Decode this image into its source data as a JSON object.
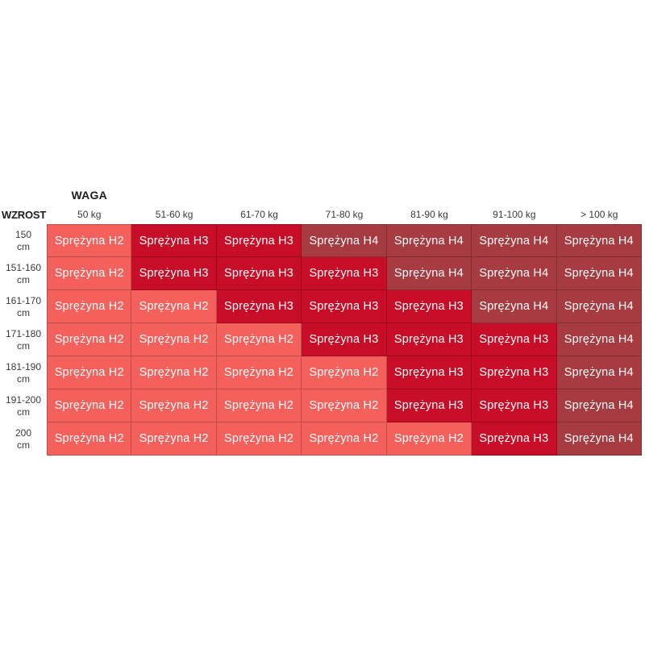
{
  "page": {
    "background": "#FFFFFF"
  },
  "table": {
    "col_axis_label": "WAGA",
    "row_axis_label": "WZROST",
    "columns": [
      "50 kg",
      "51-60 kg",
      "61-70 kg",
      "71-80 kg",
      "81-90 kg",
      "91-100 kg",
      "> 100 kg"
    ],
    "rows": [
      {
        "label_lines": [
          "150",
          "cm"
        ],
        "cells": [
          "H2",
          "H3",
          "H3",
          "H4",
          "H4",
          "H4",
          "H4"
        ]
      },
      {
        "label_lines": [
          "151-160",
          "cm"
        ],
        "cells": [
          "H2",
          "H3",
          "H3",
          "H3",
          "H4",
          "H4",
          "H4"
        ]
      },
      {
        "label_lines": [
          "161-170",
          "cm"
        ],
        "cells": [
          "H2",
          "H2",
          "H3",
          "H3",
          "H3",
          "H4",
          "H4"
        ]
      },
      {
        "label_lines": [
          "171-180",
          "cm"
        ],
        "cells": [
          "H2",
          "H2",
          "H2",
          "H3",
          "H3",
          "H3",
          "H4"
        ]
      },
      {
        "label_lines": [
          "181-190",
          "cm"
        ],
        "cells": [
          "H2",
          "H2",
          "H2",
          "H2",
          "H3",
          "H3",
          "H4"
        ]
      },
      {
        "label_lines": [
          "191-200",
          "cm"
        ],
        "cells": [
          "H2",
          "H2",
          "H2",
          "H2",
          "H3",
          "H3",
          "H4"
        ]
      },
      {
        "label_lines": [
          "200",
          "cm"
        ],
        "cells": [
          "H2",
          "H2",
          "H2",
          "H2",
          "H2",
          "H3",
          "H4"
        ]
      }
    ],
    "cell_labels": {
      "H2": "Sprężyna H2",
      "H3": "Sprężyna H3",
      "H4": "Sprężyna H4"
    },
    "colors": {
      "H2": "#F4615C",
      "H3": "#C70D27",
      "H4": "#A63B42"
    },
    "cell_text_color": "#FFFFFF",
    "header_text_color": "#1D1D1B",
    "subheader_text_color": "#3A3A3A"
  },
  "chart_data": {
    "type": "heatmap",
    "x_axis_label": "WAGA",
    "y_axis_label": "WZROST",
    "x_categories": [
      "50 kg",
      "51-60 kg",
      "61-70 kg",
      "71-80 kg",
      "81-90 kg",
      "91-100 kg",
      "> 100 kg"
    ],
    "y_categories": [
      "150 cm",
      "151-160 cm",
      "161-170 cm",
      "171-180 cm",
      "181-190 cm",
      "191-200 cm",
      "200 cm"
    ],
    "values": [
      [
        "H2",
        "H3",
        "H3",
        "H4",
        "H4",
        "H4",
        "H4"
      ],
      [
        "H2",
        "H3",
        "H3",
        "H3",
        "H4",
        "H4",
        "H4"
      ],
      [
        "H2",
        "H2",
        "H3",
        "H3",
        "H3",
        "H4",
        "H4"
      ],
      [
        "H2",
        "H2",
        "H2",
        "H3",
        "H3",
        "H3",
        "H4"
      ],
      [
        "H2",
        "H2",
        "H2",
        "H2",
        "H3",
        "H3",
        "H4"
      ],
      [
        "H2",
        "H2",
        "H2",
        "H2",
        "H3",
        "H3",
        "H4"
      ],
      [
        "H2",
        "H2",
        "H2",
        "H2",
        "H2",
        "H3",
        "H4"
      ]
    ],
    "value_display_text": {
      "H2": "Sprężyna H2",
      "H3": "Sprężyna H3",
      "H4": "Sprężyna H4"
    },
    "value_colors": {
      "H2": "#F4615C",
      "H3": "#C70D27",
      "H4": "#A63B42"
    },
    "legend_position": "none",
    "grid": true
  }
}
